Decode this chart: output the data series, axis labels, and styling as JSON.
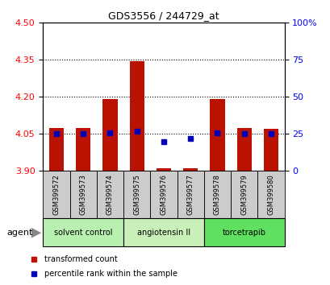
{
  "title": "GDS3556 / 244729_at",
  "samples": [
    "GSM399572",
    "GSM399573",
    "GSM399574",
    "GSM399575",
    "GSM399576",
    "GSM399577",
    "GSM399578",
    "GSM399579",
    "GSM399580"
  ],
  "transformed_count": [
    4.075,
    4.075,
    4.19,
    4.345,
    3.91,
    3.91,
    4.19,
    4.075,
    4.07
  ],
  "percentile_rank": [
    25,
    25,
    26,
    27,
    20,
    22,
    26,
    25,
    25
  ],
  "groups": [
    {
      "label": "solvent control",
      "start": 0,
      "end": 3,
      "color": "#b8f0b0"
    },
    {
      "label": "angiotensin II",
      "start": 3,
      "end": 6,
      "color": "#c8f0b8"
    },
    {
      "label": "torcetrapib",
      "start": 6,
      "end": 9,
      "color": "#60e060"
    }
  ],
  "ylim_left": [
    3.9,
    4.5
  ],
  "ylim_right": [
    0,
    100
  ],
  "yticks_left": [
    3.9,
    4.05,
    4.2,
    4.35,
    4.5
  ],
  "yticks_right": [
    0,
    25,
    50,
    75,
    100
  ],
  "ytick_labels_right": [
    "0",
    "25",
    "50",
    "75",
    "100%"
  ],
  "bar_color": "#bb1100",
  "dot_color": "#0000bb",
  "bar_bottom": 3.9,
  "bar_width": 0.55,
  "grid_lines": [
    4.05,
    4.2,
    4.35
  ],
  "legend_items": [
    {
      "color": "#bb1100",
      "label": "transformed count"
    },
    {
      "color": "#0000bb",
      "label": "percentile rank within the sample"
    }
  ],
  "agent_label": "agent",
  "sample_box_color": "#cccccc",
  "group_colors": [
    "#b8f0b0",
    "#c8f0b8",
    "#60e060"
  ]
}
